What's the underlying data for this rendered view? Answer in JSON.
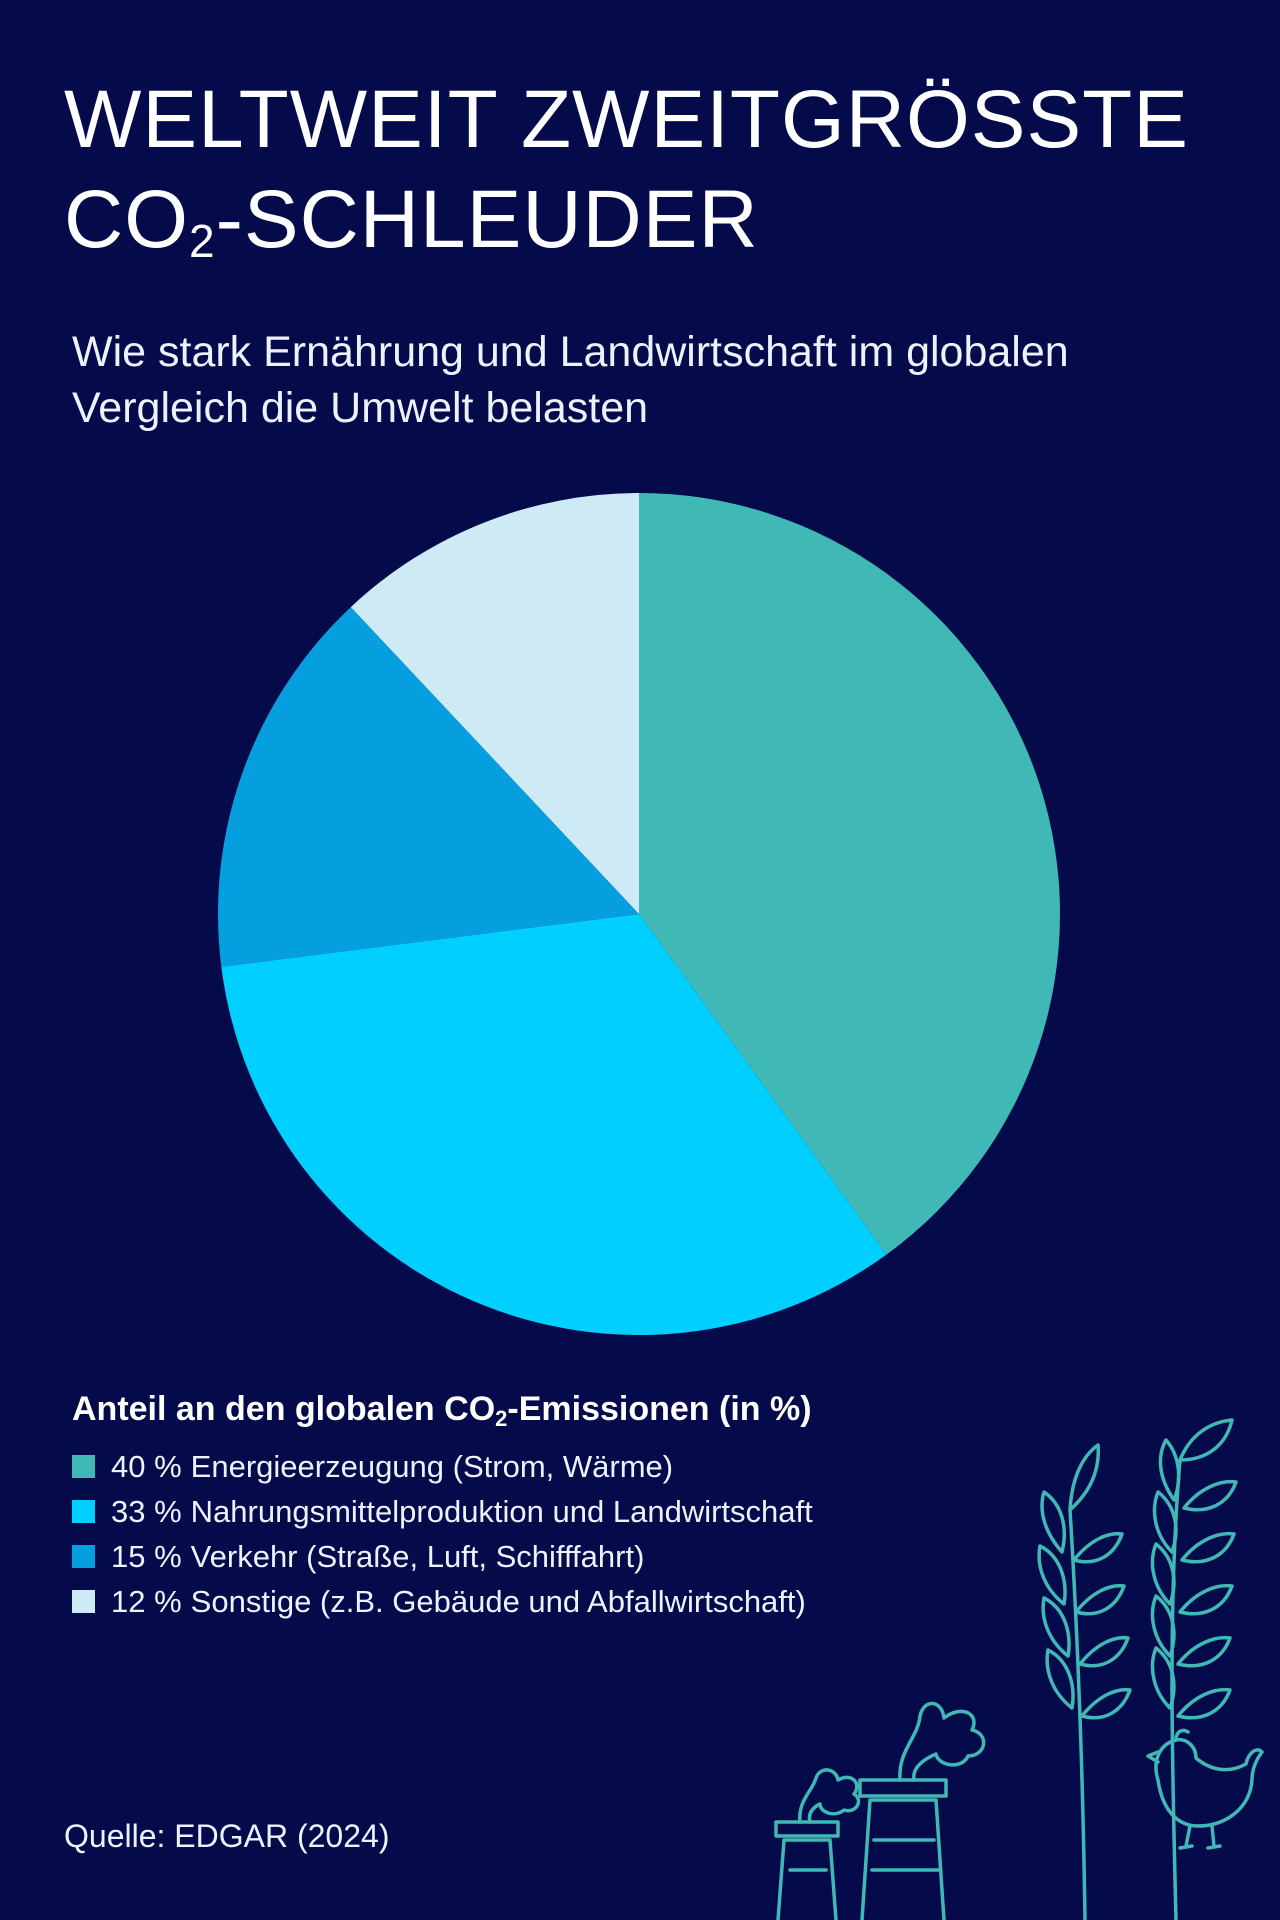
{
  "title": {
    "line1": "WELTWEIT ZWEITGRÖSSTE",
    "line2_main": "CO",
    "line2_sub": "2",
    "line2_rest": "-SCHLEUDER"
  },
  "subtitle": "Wie stark Ernährung und Landwirtschaft im globalen Vergleich die Umwelt belasten",
  "legend": {
    "title_before": "Anteil an den globalen CO",
    "title_sub": "2",
    "title_after": "-Emissionen (in %)"
  },
  "source": "Quelle: EDGAR (2024)",
  "colors": {
    "background": "#040a4a",
    "decoration": "#3fb8b6"
  },
  "chart_data": {
    "type": "pie",
    "unit": "%",
    "slices": [
      {
        "value": 40,
        "pct_label": "40 %",
        "label": "Energieerzeugung (Strom, Wärme)",
        "color": "#3fb8b6"
      },
      {
        "value": 33,
        "pct_label": "33 %",
        "label": "Nahrungsmittelproduktion und Landwirtschaft",
        "color": "#00cfff"
      },
      {
        "value": 15,
        "pct_label": "15 %",
        "label": "Verkehr (Straße, Luft, Schifffahrt)",
        "color": "#059fdf"
      },
      {
        "value": 12,
        "pct_label": "12 %",
        "label": "Sonstige (z.B. Gebäude und Abfallwirtschaft)",
        "color": "#cdeaf5"
      }
    ]
  },
  "decoration": {
    "icons": [
      "wheat-icon",
      "factory-chimney-icon",
      "chicken-icon"
    ]
  }
}
